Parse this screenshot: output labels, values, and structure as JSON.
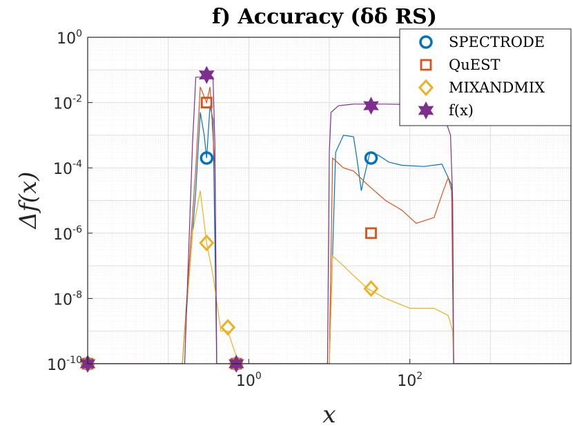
{
  "chart_data": {
    "type": "line",
    "title": "f) Accuracy (δδ RS)",
    "xlabel": "x",
    "ylabel": "Δf(x)",
    "xscale": "log",
    "yscale": "log",
    "xlim": [
      0.01,
      10000
    ],
    "ylim": [
      1e-10,
      1
    ],
    "grid": true,
    "legend_position": "top-right",
    "x_ticks": [
      {
        "value": 1,
        "base": "10",
        "exp": "0"
      },
      {
        "value": 100,
        "base": "10",
        "exp": "2"
      }
    ],
    "y_ticks": [
      {
        "value": 1,
        "base": "10",
        "exp": "0"
      },
      {
        "value": 0.01,
        "base": "10",
        "exp": "-2"
      },
      {
        "value": 0.0001,
        "base": "10",
        "exp": "-4"
      },
      {
        "value": 1e-06,
        "base": "10",
        "exp": "-6"
      },
      {
        "value": 1e-08,
        "base": "10",
        "exp": "-8"
      },
      {
        "value": 1e-10,
        "base": "10",
        "exp": "-10"
      }
    ],
    "series": [
      {
        "name": "SPECTRODE",
        "color": "#0072BD",
        "marker": "circle",
        "line": [
          [
            0.01,
            1e-10
          ],
          [
            0.15,
            1e-10
          ],
          [
            0.22,
            2e-05
          ],
          [
            0.25,
            0.005
          ],
          [
            0.28,
            0.001
          ],
          [
            0.3,
            0.0002
          ],
          [
            0.33,
            0.008
          ],
          [
            0.36,
            0.003
          ],
          [
            0.4,
            1e-10
          ],
          [
            10,
            1e-10
          ],
          [
            12,
            0.0003
          ],
          [
            15,
            0.001
          ],
          [
            20,
            0.0009
          ],
          [
            22,
            0.0002
          ],
          [
            25,
            2e-05
          ],
          [
            27,
            5e-05
          ],
          [
            32,
            0.0003
          ],
          [
            40,
            0.00025
          ],
          [
            55,
            0.00015
          ],
          [
            80,
            0.00012
          ],
          [
            150,
            0.00011
          ],
          [
            250,
            0.00013
          ],
          [
            330,
            3e-05
          ],
          [
            350,
            1e-10
          ],
          [
            10000,
            1e-10
          ]
        ],
        "markers": [
          [
            0.01,
            1e-10
          ],
          [
            0.3,
            0.0002
          ],
          [
            0.7,
            1e-10
          ],
          [
            33,
            0.0002
          ]
        ]
      },
      {
        "name": "QuEST",
        "color": "#D95319",
        "marker": "square",
        "line": [
          [
            0.01,
            1e-10
          ],
          [
            0.15,
            1e-10
          ],
          [
            0.22,
            0.0001
          ],
          [
            0.25,
            0.03
          ],
          [
            0.3,
            0.01
          ],
          [
            0.33,
            0.03
          ],
          [
            0.38,
            0.0001
          ],
          [
            0.4,
            1e-10
          ],
          [
            10,
            1e-10
          ],
          [
            11,
            0.0002
          ],
          [
            15,
            0.0001
          ],
          [
            20,
            8e-05
          ],
          [
            30,
            3e-05
          ],
          [
            50,
            1e-05
          ],
          [
            80,
            5e-06
          ],
          [
            120,
            2e-06
          ],
          [
            200,
            3e-06
          ],
          [
            260,
            2e-05
          ],
          [
            300,
            5e-05
          ],
          [
            330,
            2e-05
          ],
          [
            350,
            1e-10
          ],
          [
            10000,
            1e-10
          ]
        ],
        "markers": [
          [
            0.01,
            1e-10
          ],
          [
            0.3,
            0.01
          ],
          [
            0.7,
            1e-10
          ],
          [
            33,
            1e-06
          ]
        ]
      },
      {
        "name": "MIXANDMIX",
        "color": "#EDB120",
        "marker": "diamond",
        "line": [
          [
            0.01,
            1e-10
          ],
          [
            0.15,
            1e-10
          ],
          [
            0.2,
            1e-06
          ],
          [
            0.25,
            2e-05
          ],
          [
            0.3,
            5e-07
          ],
          [
            0.36,
            5e-08
          ],
          [
            0.45,
            1e-09
          ],
          [
            0.55,
            1e-09
          ],
          [
            0.75,
            1e-10
          ],
          [
            10,
            1e-10
          ],
          [
            11,
            2e-07
          ],
          [
            15,
            1e-07
          ],
          [
            20,
            5e-08
          ],
          [
            30,
            2e-08
          ],
          [
            50,
            1e-08
          ],
          [
            100,
            5e-09
          ],
          [
            200,
            5e-09
          ],
          [
            300,
            3e-09
          ],
          [
            340,
            1e-09
          ],
          [
            350,
            1e-10
          ],
          [
            10000,
            1e-10
          ]
        ],
        "markers": [
          [
            0.01,
            1e-10
          ],
          [
            0.3,
            5e-07
          ],
          [
            0.55,
            1.3e-09
          ],
          [
            0.7,
            1e-10
          ],
          [
            33,
            2e-08
          ]
        ]
      },
      {
        "name": "f(x)",
        "color": "#7E2F8E",
        "marker": "hexagram",
        "line": [
          [
            0.01,
            1e-10
          ],
          [
            0.16,
            1e-10
          ],
          [
            0.2,
            0.0005
          ],
          [
            0.22,
            0.06
          ],
          [
            0.36,
            0.06
          ],
          [
            0.38,
            0.0005
          ],
          [
            0.4,
            1e-10
          ],
          [
            9.5,
            1e-10
          ],
          [
            10,
            0.0003
          ],
          [
            10.5,
            0.005
          ],
          [
            13,
            0.008
          ],
          [
            20,
            0.009
          ],
          [
            50,
            0.009
          ],
          [
            150,
            0.0085
          ],
          [
            250,
            0.006
          ],
          [
            320,
            0.001
          ],
          [
            340,
            1e-05
          ],
          [
            350,
            1e-10
          ],
          [
            10000,
            1e-10
          ]
        ],
        "markers": [
          [
            0.01,
            1e-10
          ],
          [
            0.3,
            0.07
          ],
          [
            0.7,
            1e-10
          ],
          [
            33,
            0.008
          ]
        ]
      }
    ]
  }
}
